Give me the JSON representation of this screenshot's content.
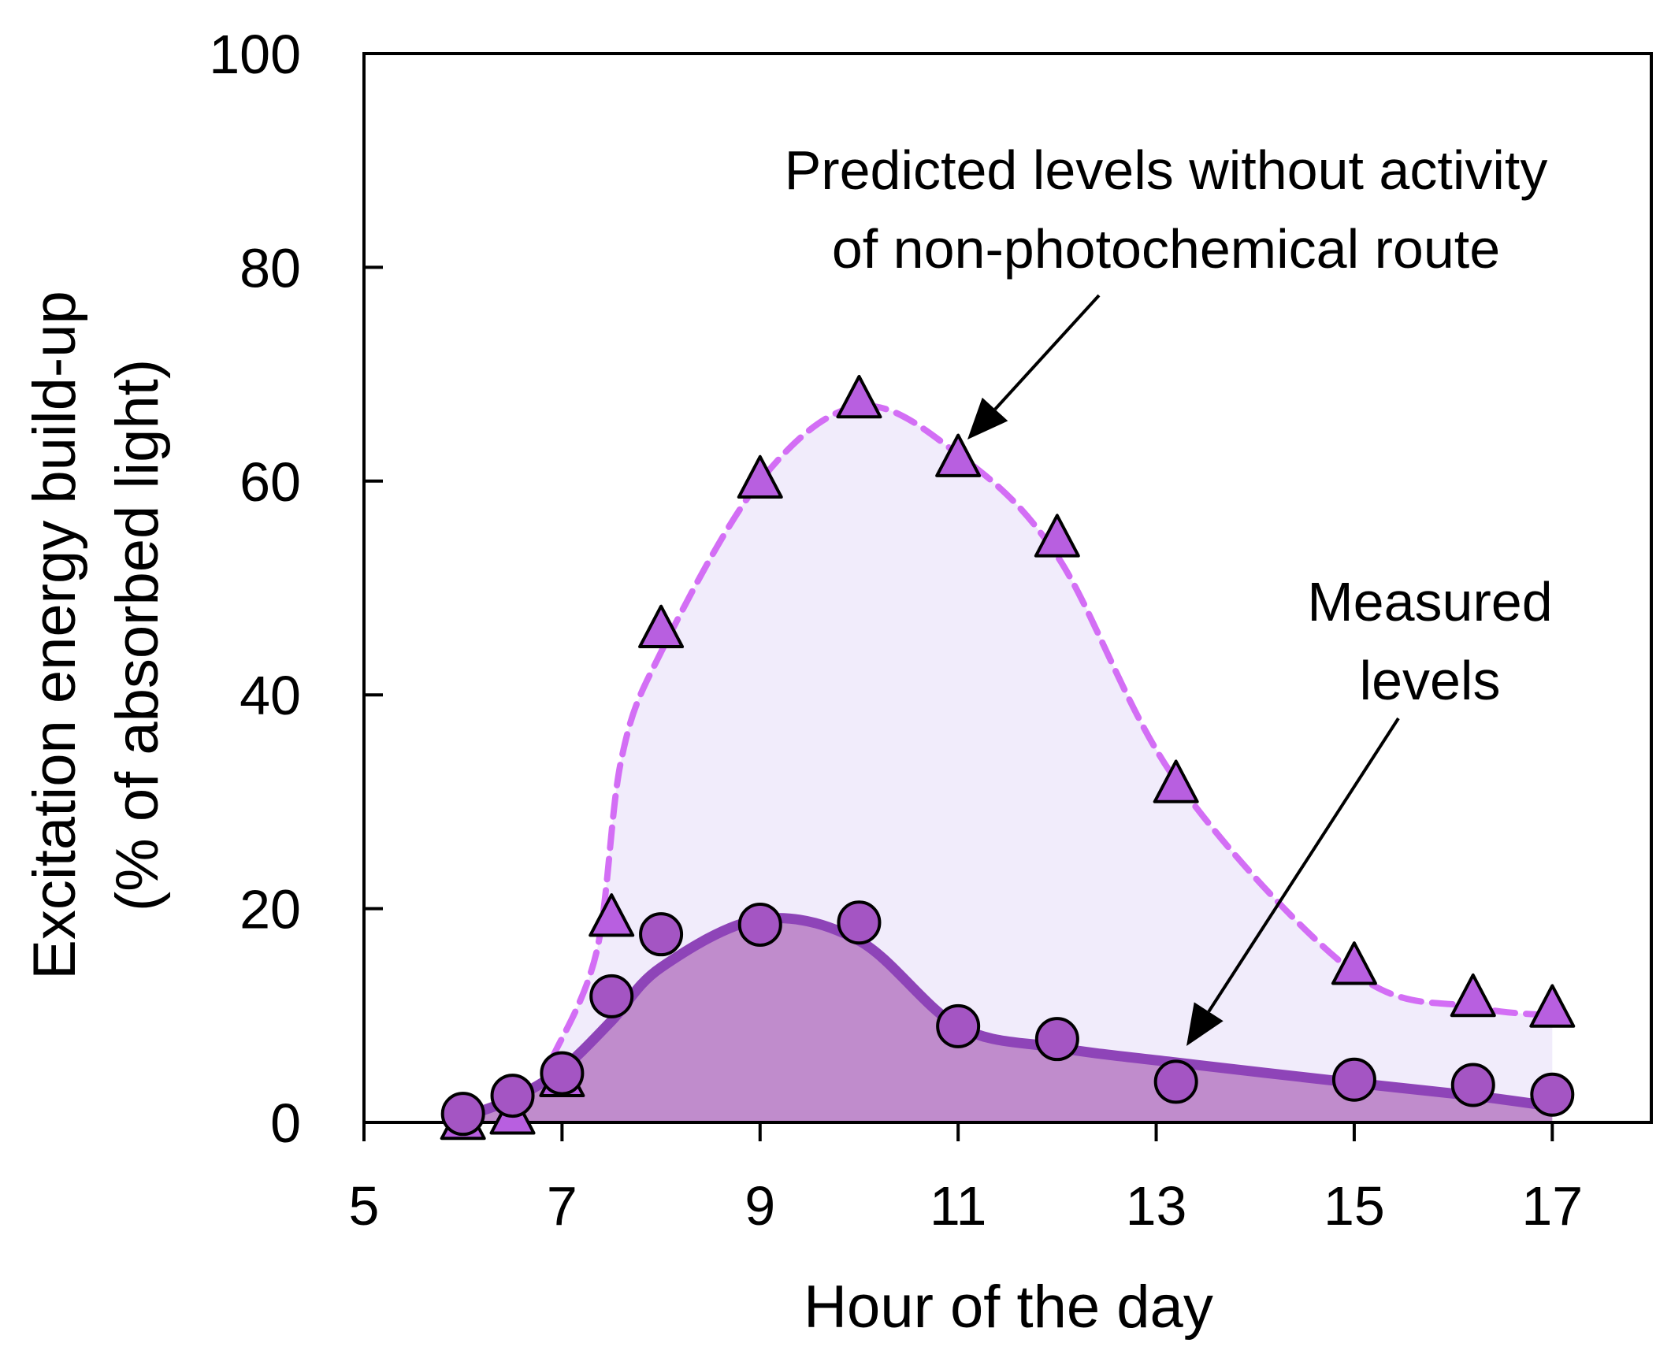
{
  "chart_data": {
    "type": "line",
    "title": "",
    "xlabel": "Hour of the day",
    "ylabel_line1": "Excitation energy build-up",
    "ylabel_line2": "(% of absorbed light)",
    "xlim": [
      5,
      18
    ],
    "ylim": [
      0,
      100
    ],
    "xticks": [
      5,
      7,
      9,
      11,
      13,
      15,
      17
    ],
    "yticks": [
      0,
      20,
      40,
      60,
      80,
      100
    ],
    "grid": false,
    "series": [
      {
        "name": "Predicted levels without activity of non-photochemical route",
        "marker": "triangle",
        "line_style": "dashed",
        "color": "#d36ef5",
        "fill": "#f1ecfb",
        "x": [
          6,
          6.5,
          7,
          7.5,
          8,
          9,
          10,
          11,
          12,
          13.2,
          15,
          16.2,
          17
        ],
        "values": [
          0,
          0.5,
          4,
          19,
          46,
          60,
          67.5,
          62,
          54.5,
          31.5,
          14.5,
          11.5,
          10.5
        ]
      },
      {
        "name": "Measured levels",
        "marker": "circle",
        "line_style": "solid",
        "color": "#8e44b8",
        "fill": "#c08ccc",
        "x": [
          6,
          6.5,
          7,
          7.5,
          8,
          9,
          10,
          11,
          12,
          13.2,
          15,
          16.2,
          17
        ],
        "values": [
          0.8,
          2.5,
          4.6,
          11.8,
          17.6,
          18.5,
          18.7,
          9.0,
          7.8,
          3.8,
          4.0,
          3.5,
          2.6
        ]
      }
    ],
    "annotations": {
      "predicted_line1": "Predicted levels without activity",
      "predicted_line2": "of non-photochemical route",
      "measured_line1": "Measured",
      "measured_line2": "levels"
    },
    "colors": {
      "marker_fill": "#a455c3",
      "triangle_fill": "#b85fe0",
      "axis": "#000000"
    }
  }
}
